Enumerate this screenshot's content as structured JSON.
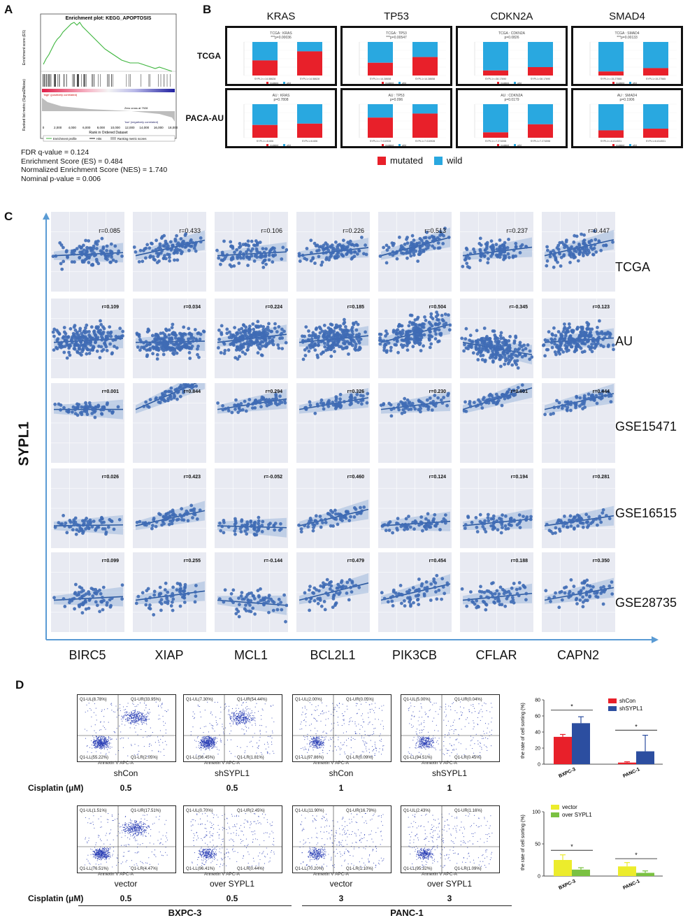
{
  "panel_labels": {
    "a": "A",
    "b": "B",
    "c": "C",
    "d": "D"
  },
  "panel_a": {
    "title": "Enrichment plot: KEGG_APOPTOSIS",
    "ylabel_top": "Enrichment score (ES)",
    "ylabel_bottom": "Ranked list metric (Signal2Noise)",
    "xlabel": "Rank in Ordered Dataset",
    "x_ticks": [
      "0",
      "2,000",
      "4,000",
      "6,000",
      "8,000",
      "10,000",
      "12,000",
      "14,000",
      "16,000",
      "18,000"
    ],
    "pos_label": "'high' (positively correlated)",
    "neg_label": "'low' (negatively correlated)",
    "zero_cross": "Zero cross at 7928",
    "legend": [
      "Enrichment profile",
      "Hits",
      "Ranking metric scores"
    ],
    "stats": [
      "FDR q-value = 0.124",
      "Enrichment Score (ES) = 0.484",
      "Normalized Enrichment Score (NES) = 1.740",
      "Nominal p-value = 0.006"
    ]
  },
  "panel_b": {
    "genes": [
      "KRAS",
      "TP53",
      "CDKN2A",
      "SMAD4"
    ],
    "rows": [
      "TCGA",
      "PACA-AU"
    ],
    "legend": {
      "mutated": "mutated",
      "wild": "wild"
    },
    "colors": {
      "mutated": "#e8202a",
      "wild": "#29a8e0"
    },
    "boxes": [
      [
        {
          "title": "TCGA : KRAS",
          "p": "***p=0.00036",
          "mut": [
            45,
            72
          ],
          "xl": [
            "SYPL1<=14.58628",
            "SYPL1>14.58628"
          ]
        },
        {
          "title": "TCGA : TP53",
          "p": "***p=0.00547",
          "mut": [
            38,
            55
          ],
          "xl": [
            "SYPL1<=14.38658",
            "SYPL1>14.38658"
          ]
        },
        {
          "title": "TCGA : CDKN2A",
          "p": "p=0.0826",
          "mut": [
            15,
            25
          ],
          "xl": [
            "SYPL1<=38.17690",
            "SYPL1>38.17690"
          ]
        },
        {
          "title": "TCGA : SMAD4",
          "p": "***p=0.00133",
          "mut": [
            12,
            22
          ],
          "xl": [
            "SYPL1<=15.27565",
            "SYPL1>15.27565"
          ]
        }
      ],
      [
        {
          "title": "AU : KRAS",
          "p": "p=0.7808",
          "mut": [
            38,
            42
          ],
          "xl": [
            "SYPL1<=6.606",
            "SYPL1>6.606"
          ]
        },
        {
          "title": "AU : TP53",
          "p": "p=0.096",
          "mut": [
            60,
            72
          ],
          "xl": [
            "SYPL1<=7.010928",
            "SYPL1>7.010928"
          ]
        },
        {
          "title": "AU : CDKN2A",
          "p": "p=0.0179",
          "mut": [
            16,
            40
          ],
          "xl": [
            "SYPL1<=7.274598",
            "SYPL1>7.274598"
          ]
        },
        {
          "title": "AU : SMAD4",
          "p": "p=0.1906",
          "mut": [
            22,
            27
          ],
          "xl": [
            "SYPL1<=6.814531",
            "SYPL1>6.814531"
          ]
        }
      ]
    ]
  },
  "panel_c": {
    "ylabel": "SYPL1",
    "genes": [
      "BIRC5",
      "XIAP",
      "MCL1",
      "BCL2L1",
      "PIK3CB",
      "CFLAR",
      "CAPN2"
    ],
    "datasets": [
      "TCGA",
      "AU",
      "GSE15471",
      "GSE16515",
      "GSE28735"
    ],
    "r_values": [
      [
        "r=0.085",
        "r=0.433",
        "r=0.106",
        "r=0.226",
        "r=0.513",
        "r=0.237",
        "r=0.447"
      ],
      [
        "r=0.109",
        "r=0.034",
        "r=0.224",
        "r=0.185",
        "r=0.504",
        "r=-0.345",
        "r=0.123"
      ],
      [
        "r=0.001",
        "r=0.844",
        "r=0.294",
        "r=0.326",
        "r=0.230",
        "r=0.601",
        "r=0.444"
      ],
      [
        "r=0.026",
        "r=0.423",
        "r=-0.052",
        "r=0.460",
        "r=0.124",
        "r=0.194",
        "r=0.281"
      ],
      [
        "r=0.099",
        "r=0.255",
        "r=-0.144",
        "r=0.479",
        "r=0.454",
        "r=0.188",
        "r=0.350"
      ]
    ]
  },
  "panel_d": {
    "cisplatin_label": "Cisplatin (μM)",
    "axis_x": "Annexin V APC-A",
    "axis_y": "PI PI-A",
    "row1": {
      "plots": [
        {
          "ul": "Q1-UL(8.78%)",
          "ur": "Q1-UR(33.95%)",
          "ll": "Q1-LL(55.22%)",
          "lr": "Q1-LR(2.05%)",
          "caption": "shCon",
          "dose": "0.5"
        },
        {
          "ul": "Q1-UL(7.30%)",
          "ur": "Q1-UR(54.44%)",
          "ll": "Q1-LL(36.45%)",
          "lr": "Q1-LR(1.81%)",
          "caption": "shSYPL1",
          "dose": "0.5"
        },
        {
          "ul": "Q1-UL(2.00%)",
          "ur": "Q1-UR(0.05%)",
          "ll": "Q1-LL(97.86%)",
          "lr": "Q1-LR(0.09%)",
          "caption": "shCon",
          "dose": "1"
        },
        {
          "ul": "Q1-UL(5.00%)",
          "ur": "Q1-UR(0.04%)",
          "ll": "Q1-LL(94.51%)",
          "lr": "Q1-LR(0.45%)",
          "caption": "shSYPL1",
          "dose": "1"
        }
      ]
    },
    "row2": {
      "plots": [
        {
          "ul": "Q1-UL(1.51%)",
          "ur": "Q1-UR(17.51%)",
          "ll": "Q1-LL(76.51%)",
          "lr": "Q1-LR(4.47%)",
          "caption": "vector",
          "dose": "0.5"
        },
        {
          "ul": "Q1-UL(0.70%)",
          "ur": "Q1-UR(2.45%)",
          "ll": "Q1-LL(96.41%)",
          "lr": "Q1-LR(0.44%)",
          "caption": "over SYPL1",
          "dose": "0.5"
        },
        {
          "ul": "Q1-UL(11.90%)",
          "ur": "Q1-UR(16.79%)",
          "ll": "Q1-LL(70.20%)",
          "lr": "Q1-LR(1.10%)",
          "caption": "vector",
          "dose": "3"
        },
        {
          "ul": "Q1-UL(2.43%)",
          "ur": "Q1-UR(1.16%)",
          "ll": "Q1-LL(95.32%)",
          "lr": "Q1-LR(1.09%)",
          "caption": "over SYPL1",
          "dose": "3"
        }
      ]
    },
    "cell_lines": [
      "BXPC-3",
      "PANC-1"
    ]
  },
  "chart_data": [
    {
      "type": "bar",
      "title": "",
      "ylabel": "the rate of cell sorting (%)",
      "categories": [
        "BXPC-3",
        "PANC-1"
      ],
      "series": [
        {
          "name": "shCon",
          "values": [
            34,
            2
          ],
          "errors": [
            3,
            1
          ],
          "color": "#e8202a"
        },
        {
          "name": "shSYPL1",
          "values": [
            51,
            16
          ],
          "errors": [
            8,
            20
          ],
          "color": "#2c4ea0"
        }
      ],
      "y_ticks": [
        "0",
        "20",
        "40",
        "60",
        "80"
      ],
      "ylim": [
        0,
        80
      ],
      "significance": [
        "*",
        "*"
      ]
    },
    {
      "type": "bar",
      "title": "",
      "ylabel": "the rate of cell sorting (%)",
      "categories": [
        "BXPC-3",
        "PANC-1"
      ],
      "series": [
        {
          "name": "vector",
          "values": [
            25,
            15
          ],
          "errors": [
            8,
            6
          ],
          "color": "#ecec2c"
        },
        {
          "name": "over SYPL1",
          "values": [
            10,
            5
          ],
          "errors": [
            3,
            3
          ],
          "color": "#7ac142"
        }
      ],
      "y_ticks": [
        "0",
        "50",
        "100"
      ],
      "ylim": [
        0,
        100
      ],
      "significance": [
        "*",
        "*"
      ]
    }
  ]
}
